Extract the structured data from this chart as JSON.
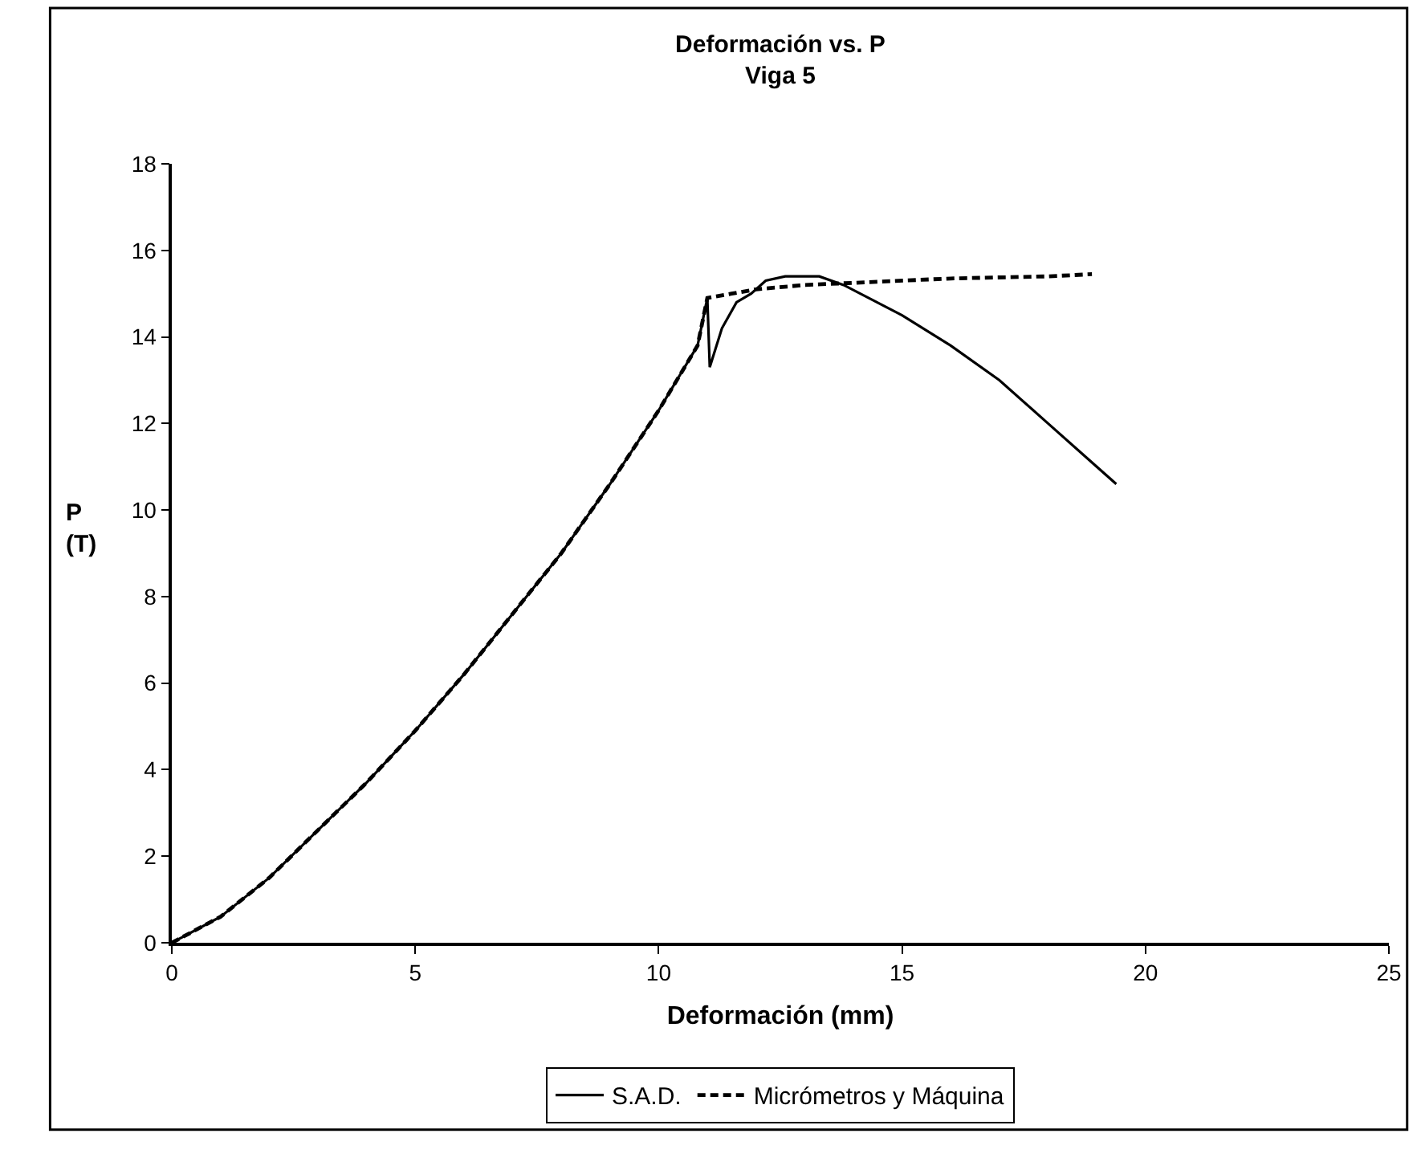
{
  "chart_data": {
    "type": "line",
    "title": "Deformación vs. P",
    "subtitle": "Viga 5",
    "xlabel": "Deformación (mm)",
    "ylabel": "P\n(T)",
    "xlim": [
      0,
      25
    ],
    "xticks": [
      0,
      5,
      10,
      15,
      20,
      25
    ],
    "ylim": [
      0,
      18
    ],
    "yticks": [
      0,
      2,
      4,
      6,
      8,
      10,
      12,
      14,
      16,
      18
    ],
    "grid": false,
    "legend": "bottom",
    "marker": "none",
    "series": [
      {
        "name": "S.A.D.",
        "color": "#000000",
        "line_style": "solid",
        "x": [
          0,
          1,
          2,
          3,
          4,
          5,
          6,
          7,
          8,
          9,
          10,
          10.8,
          11,
          11.05,
          11.3,
          11.6,
          11.9,
          12.2,
          12.6,
          13.3,
          13.8,
          15,
          16,
          17,
          18,
          19,
          19.4
        ],
        "values": [
          0,
          0.6,
          1.5,
          2.6,
          3.7,
          4.9,
          6.2,
          7.6,
          9.0,
          10.6,
          12.3,
          13.8,
          14.9,
          13.3,
          14.2,
          14.8,
          15.0,
          15.3,
          15.4,
          15.4,
          15.2,
          14.5,
          13.8,
          13.0,
          12.0,
          11.0,
          10.6
        ]
      },
      {
        "name": "Micrómetros y Máquina",
        "color": "#000000",
        "line_style": "dashed",
        "x": [
          0,
          1,
          2,
          3,
          4,
          5,
          6,
          7,
          8,
          9,
          10,
          10.8,
          11,
          11.5,
          12,
          13,
          14,
          16,
          18,
          18.9
        ],
        "values": [
          0,
          0.6,
          1.5,
          2.6,
          3.7,
          4.9,
          6.2,
          7.6,
          9.0,
          10.6,
          12.3,
          13.8,
          14.9,
          15.0,
          15.1,
          15.2,
          15.25,
          15.35,
          15.4,
          15.45
        ]
      }
    ]
  }
}
